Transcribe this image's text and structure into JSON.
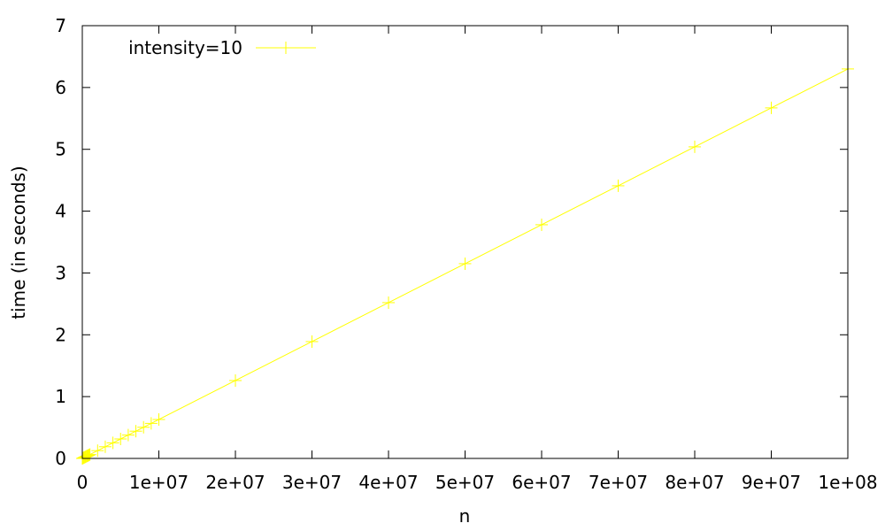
{
  "chart_data": {
    "type": "line",
    "xlabel": "n",
    "ylabel": "time (in seconds)",
    "xlim": [
      0,
      100000000
    ],
    "ylim": [
      0,
      7
    ],
    "x_ticks": [
      0,
      10000000,
      20000000,
      30000000,
      40000000,
      50000000,
      60000000,
      70000000,
      80000000,
      90000000,
      100000000
    ],
    "x_tick_labels": [
      "0",
      "1e+07",
      "2e+07",
      "3e+07",
      "4e+07",
      "5e+07",
      "6e+07",
      "7e+07",
      "8e+07",
      "9e+07",
      "1e+08"
    ],
    "y_ticks": [
      0,
      1,
      2,
      3,
      4,
      5,
      6,
      7
    ],
    "y_tick_labels": [
      "0",
      "1",
      "2",
      "3",
      "4",
      "5",
      "6",
      "7"
    ],
    "grid": false,
    "legend": {
      "position": "top-left"
    },
    "series": [
      {
        "name": "intensity=10",
        "color": "#ffff00",
        "marker": "plus",
        "x": [
          0,
          100000,
          200000,
          300000,
          400000,
          500000,
          600000,
          700000,
          800000,
          900000,
          1000000,
          2000000,
          3000000,
          4000000,
          5000000,
          6000000,
          7000000,
          8000000,
          9000000,
          10000000,
          20000000,
          30000000,
          40000000,
          50000000,
          60000000,
          70000000,
          80000000,
          90000000,
          100000000
        ],
        "y": [
          0.0,
          0.006,
          0.013,
          0.019,
          0.025,
          0.032,
          0.038,
          0.044,
          0.05,
          0.057,
          0.063,
          0.126,
          0.189,
          0.252,
          0.315,
          0.378,
          0.441,
          0.504,
          0.567,
          0.63,
          1.26,
          1.89,
          2.52,
          3.15,
          3.78,
          4.41,
          5.04,
          5.67,
          6.3
        ]
      }
    ]
  }
}
